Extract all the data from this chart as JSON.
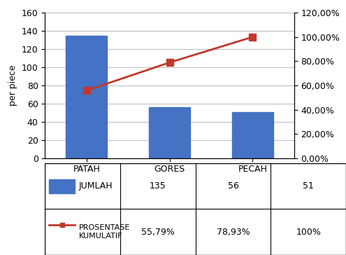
{
  "categories": [
    "PATAH",
    "GORES",
    "PECAH"
  ],
  "bar_values": [
    135,
    56,
    51
  ],
  "cumulative_pct": [
    55.79,
    78.93,
    100.0
  ],
  "bar_color": "#4472C4",
  "line_color": "#C0392B",
  "line_marker": "s",
  "ylabel_left": "per piece",
  "ylim_left": [
    0,
    160
  ],
  "ylim_right": [
    0,
    120
  ],
  "yticks_left": [
    0,
    20,
    40,
    60,
    80,
    100,
    120,
    140,
    160
  ],
  "yticks_right": [
    0,
    20,
    40,
    60,
    80,
    100,
    120
  ],
  "ytick_labels_right": [
    "0,00%",
    "20,00%",
    "40,00%",
    "60,00%",
    "80,00%",
    "100,00%",
    "120,00%"
  ],
  "legend_entries": [
    "JUMLAH",
    "PROSENTASE\nKUMULATIF"
  ],
  "table_row1_values": [
    "135",
    "56",
    "51"
  ],
  "table_row2_values": [
    "55,79%",
    "78,93%",
    "100%"
  ],
  "background_color": "#FFFFFF",
  "grid_color": "#C0C0C0",
  "font_size": 9,
  "title": ""
}
